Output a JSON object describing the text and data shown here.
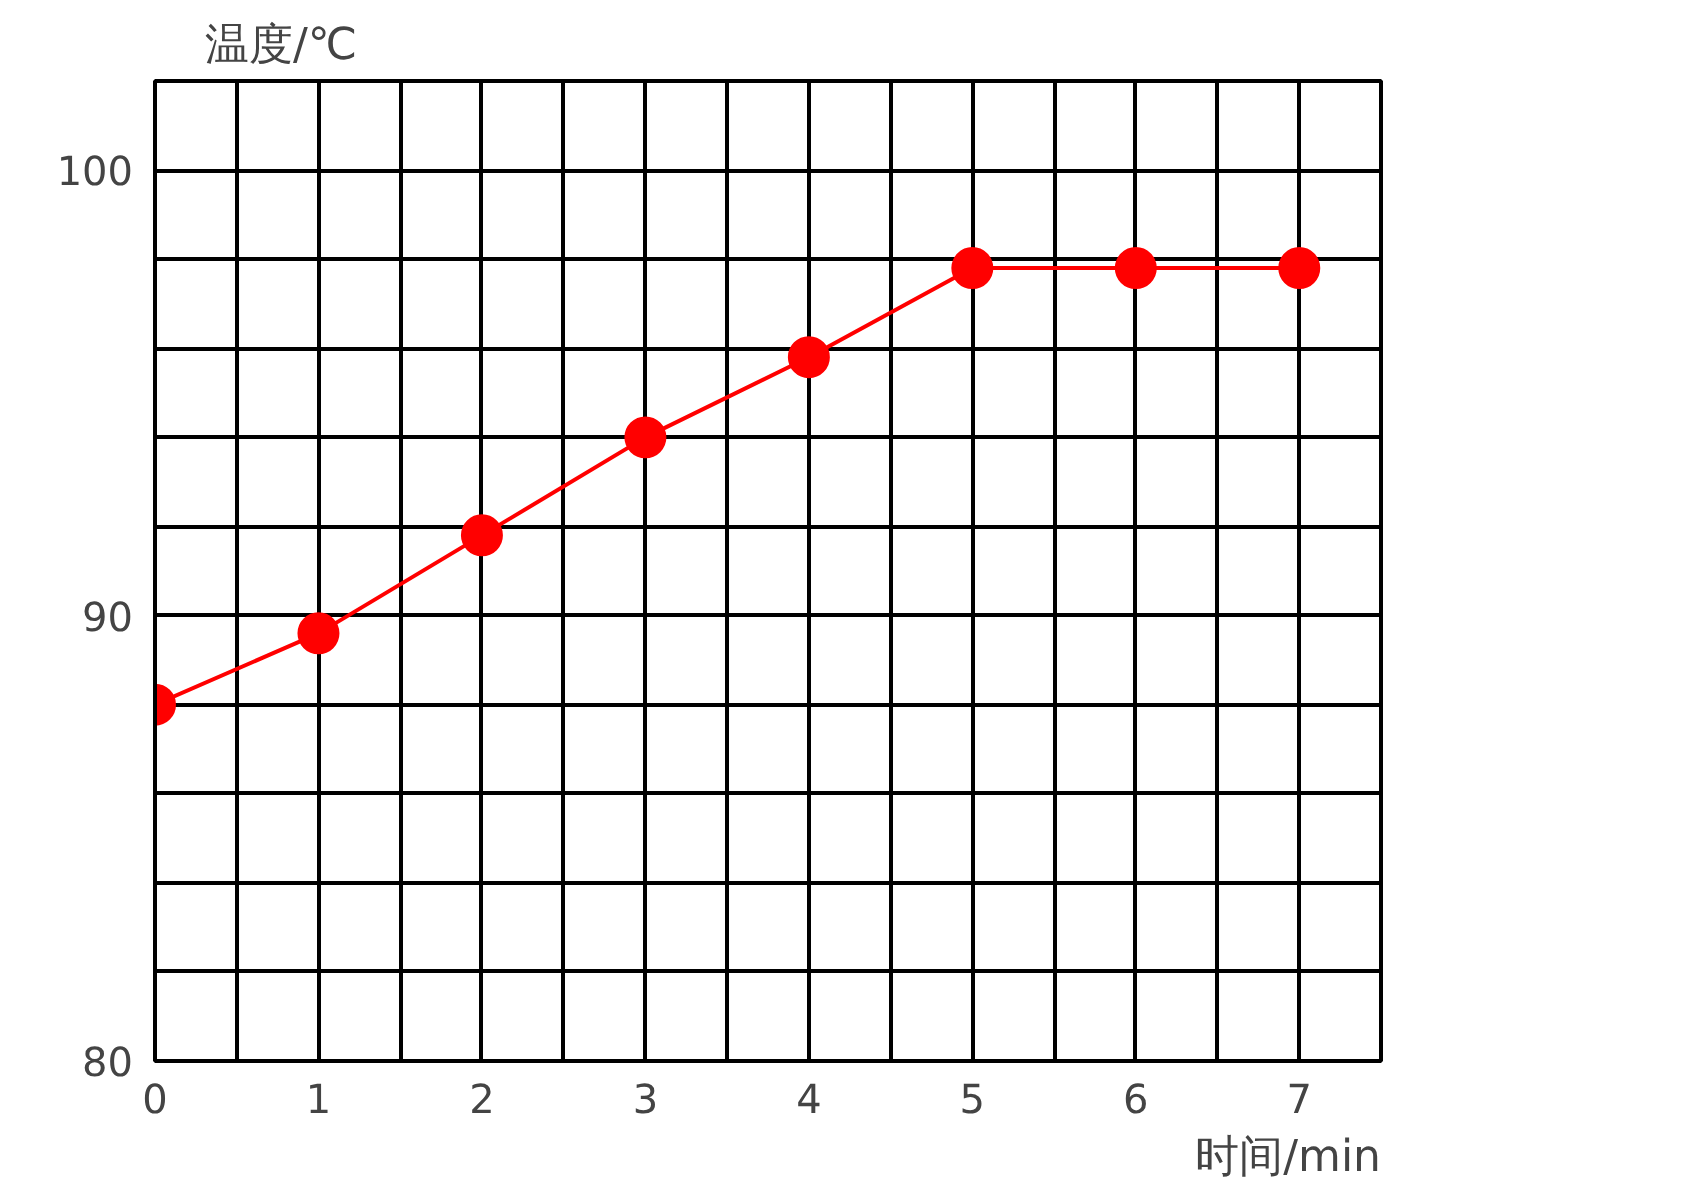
{
  "chart_data": {
    "type": "line",
    "xlabel": "时间/min",
    "ylabel": "温度/℃",
    "x": [
      0,
      1,
      2,
      3,
      4,
      5,
      6,
      7
    ],
    "series": [
      {
        "color": "#ff0000",
        "values": [
          88,
          89.6,
          91.8,
          94,
          95.8,
          97.8,
          97.8,
          97.8
        ]
      }
    ],
    "xlim": [
      0,
      7.5
    ],
    "ylim": [
      80,
      102
    ],
    "xticks": [
      0,
      {
        "value": 0.5,
        "label": null
      },
      1,
      {
        "value": 1.5,
        "label": null
      },
      2,
      {
        "value": 2.5,
        "label": null
      },
      3,
      {
        "value": 3.5,
        "label": null
      },
      4,
      {
        "value": 4.5,
        "label": null
      },
      5,
      {
        "value": 5.5,
        "label": null
      },
      6,
      {
        "value": 6.5,
        "label": null
      },
      7,
      {
        "value": 7.5,
        "label": null
      }
    ],
    "yticks": [
      80,
      {
        "value": 82,
        "label": null
      },
      {
        "value": 84,
        "label": null
      },
      {
        "value": 86,
        "label": null
      },
      {
        "value": 88,
        "label": null
      },
      90,
      {
        "value": 92,
        "label": null
      },
      {
        "value": 94,
        "label": null
      },
      {
        "value": 96,
        "label": null
      },
      {
        "value": 98,
        "label": null
      },
      100,
      {
        "value": 102,
        "label": null
      }
    ],
    "grid": true,
    "marker": "circle",
    "line_style": "solid"
  }
}
